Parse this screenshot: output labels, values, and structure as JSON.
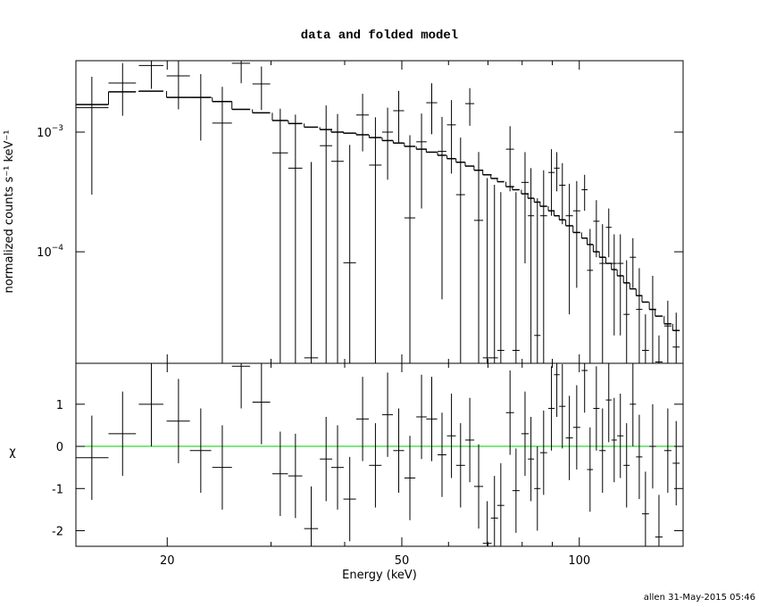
{
  "chart_data": [
    {
      "type": "errorbar",
      "title": "data and folded model",
      "ylabel": "normalized counts s⁻¹ keV⁻¹",
      "xscale": "log",
      "yscale": "log",
      "xlim": [
        14,
        150
      ],
      "ylim": [
        1.17e-05,
        0.00395
      ],
      "yticks": [
        {
          "value": 0.0001,
          "label": "10",
          "exponent": "−4"
        },
        {
          "value": 0.001,
          "label": "10",
          "exponent": "−3"
        }
      ],
      "color": "#000000",
      "x": [
        14.9,
        16.8,
        18.8,
        20.9,
        22.8,
        24.8,
        26.7,
        28.9,
        31.1,
        33.0,
        35.1,
        37.2,
        38.9,
        40.8,
        42.9,
        45.1,
        47.3,
        49.4,
        51.6,
        54.0,
        56.2,
        58.5,
        60.7,
        62.9,
        65.2,
        67.5,
        69.8,
        71.8,
        73.6,
        76.3,
        78.1,
        80.9,
        82.8,
        84.9,
        87.0,
        89.7,
        91.6,
        93.6,
        96.2,
        99.0,
        102.1,
        104.3,
        106.9,
        109.5,
        112.2,
        114.6,
        117.4,
        120.3,
        123.3,
        126.4,
        129.5,
        133.2,
        136.5,
        141.3,
        146.0
      ],
      "xerr": [
        1.0,
        0.9,
        0.9,
        0.95,
        0.95,
        0.95,
        0.95,
        1.0,
        0.95,
        0.9,
        0.95,
        0.9,
        0.95,
        1.0,
        1.05,
        1.1,
        1.0,
        1.05,
        1.1,
        1.1,
        1.2,
        1.0,
        1.05,
        1.1,
        1.15,
        1.2,
        1.2,
        1.0,
        1.0,
        1.2,
        1.1,
        1.15,
        1.0,
        1.05,
        1.2,
        1.1,
        1.0,
        1.15,
        1.35,
        1.4,
        1.2,
        1.2,
        1.3,
        1.35,
        1.25,
        1.2,
        1.45,
        1.45,
        1.5,
        1.55,
        1.75,
        1.75,
        2.0,
        2.0,
        2.0
      ],
      "values": [
        0.0016,
        0.00257,
        0.0036,
        0.00295,
        0.00195,
        0.00119,
        0.00376,
        0.00253,
        0.00067,
        0.0005,
        1.3e-05,
        0.00077,
        0.00057,
        8.1e-05,
        0.00139,
        0.00053,
        0.001,
        0.00151,
        0.000192,
        0.00083,
        0.00176,
        0.00069,
        0.00115,
        0.0003,
        0.00173,
        0.000183,
        1.3e-05,
        1.3e-05,
        1.5e-05,
        0.00072,
        1.5e-05,
        0.00038,
        0.0002,
        2e-05,
        0.0002,
        0.00046,
        0.0005,
        0.00036,
        0.0002,
        0.00022,
        0.00033,
        7e-05,
        0.00018,
        8e-05,
        0.00016,
        8e-05,
        8e-05,
        3e-05,
        9e-05,
        3.3e-05,
        1.5e-05,
        3.3e-05,
        1.2e-05,
        2.4e-05,
        1.6e-05
      ],
      "yerr": [
        0.0013,
        0.0012,
        0.0013,
        0.0014,
        0.0011,
        0.0012,
        0.0012,
        0.001,
        0.0009,
        0.0009,
        0.00055,
        0.0009,
        0.00085,
        0.0007,
        0.0007,
        0.0008,
        0.0006,
        0.0007,
        0.00075,
        0.0006,
        0.0008,
        0.00065,
        0.0007,
        0.0006,
        0.0006,
        0.0005,
        0.0004,
        0.00035,
        0.0003,
        0.0004,
        0.0003,
        0.0003,
        0.0003,
        0.00026,
        0.00028,
        0.00026,
        0.00018,
        0.00019,
        0.00017,
        0.00017,
        0.00011,
        8.5e-05,
        9e-05,
        9e-05,
        7e-05,
        6e-05,
        6e-05,
        5.5e-05,
        4e-05,
        4e-05,
        1.5e-05,
        3e-05,
        8e-06,
        1.5e-05,
        1.5e-05
      ],
      "model": [
        0.0017,
        0.00217,
        0.0022,
        0.00195,
        0.00195,
        0.0018,
        0.00155,
        0.00145,
        0.00125,
        0.00118,
        0.0011,
        0.00105,
        0.001,
        0.00098,
        0.00095,
        0.0009,
        0.00085,
        0.00081,
        0.00076,
        0.00072,
        0.00068,
        0.00064,
        0.0006,
        0.00056,
        0.00052,
        0.00048,
        0.00044,
        0.00041,
        0.000385,
        0.00035,
        0.00033,
        0.000305,
        0.00028,
        0.00026,
        0.00024,
        0.00022,
        0.0002,
        0.000185,
        0.000165,
        0.000145,
        0.00013,
        0.000115,
        0.0001,
        9e-05,
        8e-05,
        7.1e-05,
        6.3e-05,
        5.5e-05,
        4.9e-05,
        4.3e-05,
        3.8e-05,
        3.3e-05,
        2.9e-05,
        2.5e-05,
        2.2e-05
      ]
    },
    {
      "type": "errorbar",
      "ylabel": "χ",
      "xlabel": "Energy (keV)",
      "xscale": "log",
      "xlim": [
        14,
        150
      ],
      "xticks": [
        20,
        50,
        100
      ],
      "xminor": [
        30,
        40,
        60,
        70,
        80,
        90
      ],
      "ylim": [
        -2.37,
        1.97
      ],
      "yticks": [
        -2,
        -1,
        0,
        1
      ],
      "color": "#000000",
      "hline": 0,
      "hline_color": "#00cc00",
      "x": [
        14.9,
        16.8,
        18.8,
        20.9,
        22.8,
        24.8,
        26.7,
        28.9,
        31.1,
        33.0,
        35.1,
        37.2,
        38.9,
        40.8,
        42.9,
        45.1,
        47.3,
        49.4,
        51.6,
        54.0,
        56.2,
        58.5,
        60.7,
        62.9,
        65.2,
        67.5,
        69.8,
        71.8,
        73.6,
        76.3,
        78.1,
        80.9,
        82.8,
        84.9,
        87.0,
        89.7,
        91.6,
        93.6,
        96.2,
        99.0,
        102.1,
        104.3,
        106.9,
        109.5,
        112.2,
        114.6,
        117.4,
        120.3,
        123.3,
        126.4,
        129.5,
        133.2,
        136.5,
        141.3,
        146.0
      ],
      "xerr": [
        1.0,
        0.9,
        0.9,
        0.95,
        0.95,
        0.95,
        0.95,
        1.0,
        0.95,
        0.9,
        0.95,
        0.9,
        0.95,
        1.0,
        1.05,
        1.1,
        1.0,
        1.05,
        1.1,
        1.1,
        1.2,
        1.0,
        1.05,
        1.1,
        1.15,
        1.2,
        1.2,
        1.0,
        1.0,
        1.2,
        1.1,
        1.15,
        1.0,
        1.05,
        1.2,
        1.1,
        1.0,
        1.15,
        1.35,
        1.4,
        1.2,
        1.2,
        1.3,
        1.35,
        1.25,
        1.2,
        1.45,
        1.45,
        1.5,
        1.55,
        1.75,
        1.75,
        2.0,
        2.0,
        2.0
      ],
      "values": [
        -0.27,
        0.3,
        1.0,
        0.6,
        -0.1,
        -0.5,
        1.9,
        1.05,
        -0.65,
        -0.7,
        -1.95,
        -0.3,
        -0.5,
        -1.25,
        0.65,
        -0.45,
        0.75,
        -0.1,
        -0.75,
        0.7,
        0.65,
        -0.2,
        0.25,
        -0.45,
        0.15,
        -0.95,
        -2.3,
        -1.7,
        -1.4,
        0.8,
        -1.05,
        0.3,
        -0.3,
        -1.0,
        -0.15,
        0.9,
        1.7,
        0.95,
        0.2,
        0.45,
        1.8,
        -0.55,
        0.9,
        -0.1,
        1.1,
        0.15,
        0.25,
        -0.45,
        1.0,
        -0.25,
        -1.6,
        0.0,
        -2.15,
        -0.1,
        -0.4
      ],
      "yerr": [
        1,
        1,
        1,
        1,
        1,
        1,
        1,
        1,
        1,
        1,
        1,
        1,
        1,
        1,
        1,
        1,
        1,
        1,
        1,
        1,
        1,
        1,
        1,
        1,
        1,
        1,
        1,
        1,
        1,
        1,
        1,
        1,
        1,
        1,
        1,
        1,
        1,
        1,
        1,
        1,
        1,
        1,
        1,
        1,
        1,
        1,
        1,
        1,
        1,
        1,
        1,
        1,
        1,
        1,
        1
      ]
    }
  ],
  "footer": "allen 31-May-2015 05:46"
}
